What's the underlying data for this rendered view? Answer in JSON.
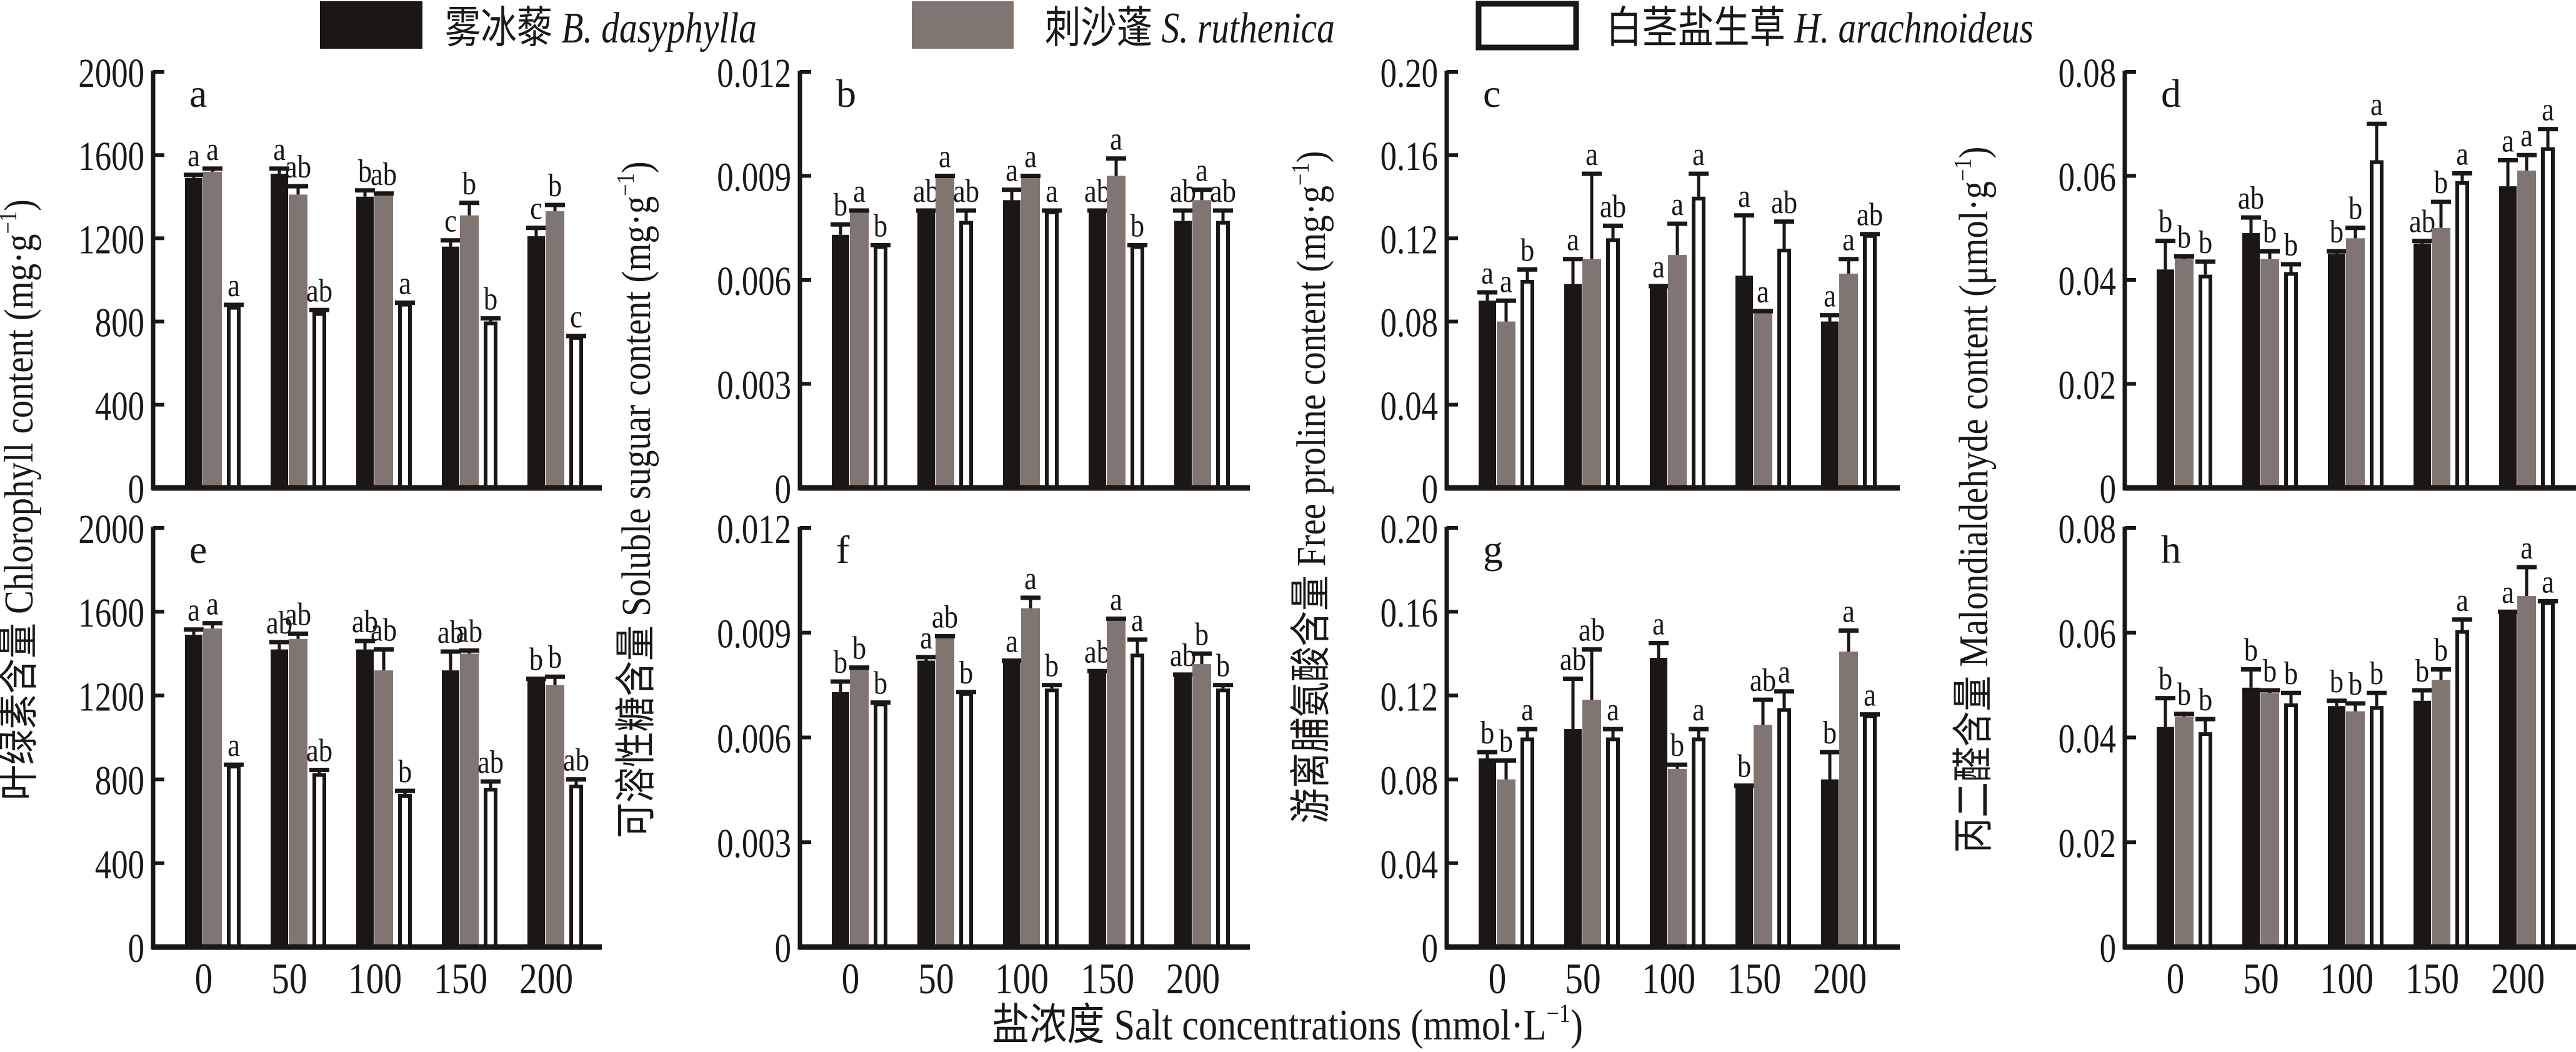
{
  "legend": [
    {
      "label": "雾冰藜 B. dasyphylla",
      "cn": "雾冰藜",
      "latin": "B. dasyphylla",
      "color": "#1a1714"
    },
    {
      "label": "刺沙蓬 S. ruthenica",
      "cn": "刺沙蓬",
      "latin": "S. ruthenica",
      "color": "#7f7672"
    },
    {
      "label": "白茎盐生草 H. arachnoideus",
      "cn": "白茎盐生草",
      "latin": "H. arachnoideus",
      "color": "#ffffff"
    }
  ],
  "x_title": "盐浓度 Salt concentrations (mmol·L⁻¹)",
  "x_title_parts": {
    "main": "盐浓度 Salt concentrations (mmol·L",
    "sup": "−1",
    "close": ")"
  },
  "y_titles": [
    {
      "main": "叶绿素含量 Chlorophyll content (mg·g",
      "sup": "−1",
      "close": ")"
    },
    {
      "main": "可溶性糖含量 Soluble suguar content (mg·g",
      "sup": "−1",
      "close": ")"
    },
    {
      "main": "游离脯氨酸含量 Free proline content (mg·g",
      "sup": "−1",
      "close": ")"
    },
    {
      "main": "丙二醛含量 Malondialdehyde content (μmol·g",
      "sup": "−1",
      "close": ")"
    }
  ],
  "chart_data": [
    {
      "type": "bar",
      "panel": "a",
      "row": 0,
      "col": 0,
      "categories": [
        "0",
        "50",
        "100",
        "150",
        "200"
      ],
      "ylim": [
        0,
        2000
      ],
      "yticks": [
        "0",
        "400",
        "800",
        "1200",
        "1600",
        "2000"
      ],
      "ylabel": "叶绿素含量 Chlorophyll content (mg·g⁻¹)",
      "xlabel": "",
      "series": [
        {
          "name": "雾冰藜 B. dasyphylla",
          "values": [
            1490,
            1510,
            1400,
            1160,
            1210
          ],
          "err": [
            1505,
            1535,
            1430,
            1190,
            1250
          ],
          "sig": [
            "a",
            "a",
            "b",
            "c",
            "c"
          ]
        },
        {
          "name": "刺沙蓬 S. ruthenica",
          "values": [
            1520,
            1410,
            1410,
            1310,
            1330
          ],
          "err": [
            1535,
            1450,
            1415,
            1370,
            1360
          ],
          "sig": [
            "a",
            "ab",
            "ab",
            "b",
            "b"
          ]
        },
        {
          "name": "白茎盐生草 H. arachnoideus",
          "values": [
            875,
            845,
            890,
            800,
            730
          ],
          "err": [
            880,
            855,
            890,
            815,
            730
          ],
          "sig": [
            "a",
            "ab",
            "a",
            "b",
            "c"
          ]
        }
      ]
    },
    {
      "type": "bar",
      "panel": "b",
      "row": 0,
      "col": 1,
      "categories": [
        "0",
        "50",
        "100",
        "150",
        "200"
      ],
      "ylim": [
        0,
        0.012
      ],
      "yticks": [
        "0",
        "0.003",
        "0.006",
        "0.009",
        "0.012"
      ],
      "ylabel": "可溶性糖含量 Soluble suguar content (mg·g⁻¹)",
      "xlabel": "",
      "series": [
        {
          "name": "雾冰藜 B. dasyphylla",
          "values": [
            0.0073,
            0.008,
            0.0083,
            0.008,
            0.0077
          ],
          "err": [
            0.0076,
            0.008,
            0.0086,
            0.008,
            0.008
          ],
          "sig": [
            "b",
            "ab",
            "a",
            "ab",
            "ab"
          ]
        },
        {
          "name": "刺沙蓬 S. ruthenica",
          "values": [
            0.008,
            0.009,
            0.009,
            0.009,
            0.0083
          ],
          "err": [
            0.008,
            0.009,
            0.009,
            0.0095,
            0.0086
          ],
          "sig": [
            "a",
            "a",
            "a",
            "a",
            "a"
          ]
        },
        {
          "name": "白茎盐生草 H. arachnoideus",
          "values": [
            0.007,
            0.0077,
            0.008,
            0.007,
            0.0077
          ],
          "err": [
            0.007,
            0.008,
            0.008,
            0.007,
            0.008
          ],
          "sig": [
            "b",
            "ab",
            "a",
            "b",
            "ab"
          ]
        }
      ]
    },
    {
      "type": "bar",
      "panel": "c",
      "row": 0,
      "col": 2,
      "categories": [
        "0",
        "50",
        "100",
        "150",
        "200"
      ],
      "ylim": [
        0,
        0.2
      ],
      "yticks": [
        "0",
        "0.04",
        "0.08",
        "0.12",
        "0.16",
        "0.20"
      ],
      "ylabel": "游离脯氨酸含量 Free proline content (mg·g⁻¹)",
      "xlabel": "",
      "series": [
        {
          "name": "雾冰藜 B. dasyphylla",
          "values": [
            0.09,
            0.098,
            0.097,
            0.102,
            0.08
          ],
          "err": [
            0.094,
            0.11,
            0.097,
            0.131,
            0.083
          ],
          "sig": [
            "a",
            "a",
            "a",
            "a",
            "a"
          ]
        },
        {
          "name": "刺沙蓬 S. ruthenica",
          "values": [
            0.08,
            0.11,
            0.112,
            0.085,
            0.103
          ],
          "err": [
            0.09,
            0.151,
            0.127,
            0.085,
            0.11
          ],
          "sig": [
            "a",
            "a",
            "a",
            "a",
            "a"
          ]
        },
        {
          "name": "白茎盐生草 H. arachnoideus",
          "values": [
            0.1,
            0.12,
            0.14,
            0.115,
            0.122
          ],
          "err": [
            0.105,
            0.126,
            0.151,
            0.128,
            0.122
          ],
          "sig": [
            "b",
            "ab",
            "a",
            "ab",
            "ab"
          ]
        }
      ]
    },
    {
      "type": "bar",
      "panel": "d",
      "row": 0,
      "col": 3,
      "categories": [
        "0",
        "50",
        "100",
        "150",
        "200"
      ],
      "ylim": [
        0,
        0.08
      ],
      "yticks": [
        "0",
        "0.02",
        "0.04",
        "0.06",
        "0.08"
      ],
      "ylabel": "丙二醛含量 Malondialdehyde content (μmol·g⁻¹)",
      "xlabel": "",
      "series": [
        {
          "name": "雾冰藜 B. dasyphylla",
          "values": [
            0.042,
            0.049,
            0.045,
            0.047,
            0.058
          ],
          "err": [
            0.0475,
            0.052,
            0.0455,
            0.0475,
            0.063
          ],
          "sig": [
            "b",
            "ab",
            "b",
            "ab",
            "a"
          ]
        },
        {
          "name": "刺沙蓬 S. ruthenica",
          "values": [
            0.044,
            0.044,
            0.048,
            0.05,
            0.061
          ],
          "err": [
            0.0445,
            0.0455,
            0.05,
            0.055,
            0.064
          ],
          "sig": [
            "b",
            "b",
            "b",
            "b",
            "a"
          ]
        },
        {
          "name": "白茎盐生草 H. arachnoideus",
          "values": [
            0.041,
            0.0415,
            0.063,
            0.059,
            0.0655
          ],
          "err": [
            0.0435,
            0.043,
            0.07,
            0.0605,
            0.069
          ],
          "sig": [
            "b",
            "b",
            "a",
            "a",
            "a"
          ]
        }
      ]
    },
    {
      "type": "bar",
      "panel": "e",
      "row": 1,
      "col": 0,
      "categories": [
        "0",
        "50",
        "100",
        "150",
        "200"
      ],
      "ylim": [
        0,
        2000
      ],
      "yticks": [
        "0",
        "400",
        "800",
        "1200",
        "1600",
        "2000"
      ],
      "ylabel": "叶绿素含量 Chlorophyll content (mg·g⁻¹)",
      "xlabel": "盐浓度 Salt concentrations (mmol·L⁻¹)",
      "series": [
        {
          "name": "雾冰藜 B. dasyphylla",
          "values": [
            1490,
            1420,
            1420,
            1320,
            1280
          ],
          "err": [
            1515,
            1455,
            1460,
            1410,
            1280
          ],
          "sig": [
            "a",
            "ab",
            "ab",
            "ab",
            "b"
          ]
        },
        {
          "name": "刺沙蓬 S. ruthenica",
          "values": [
            1520,
            1470,
            1320,
            1400,
            1250
          ],
          "err": [
            1545,
            1495,
            1420,
            1415,
            1290
          ],
          "sig": [
            "a",
            "ab",
            "ab",
            "ab",
            "b"
          ]
        },
        {
          "name": "白茎盐生草 H. arachnoideus",
          "values": [
            870,
            830,
            730,
            760,
            775
          ],
          "err": [
            870,
            845,
            745,
            790,
            800
          ],
          "sig": [
            "a",
            "ab",
            "b",
            "ab",
            "ab"
          ]
        }
      ]
    },
    {
      "type": "bar",
      "panel": "f",
      "row": 1,
      "col": 1,
      "categories": [
        "0",
        "50",
        "100",
        "150",
        "200"
      ],
      "ylim": [
        0,
        0.012
      ],
      "yticks": [
        "0",
        "0.003",
        "0.006",
        "0.009",
        "0.012"
      ],
      "ylabel": "可溶性糖含量 Soluble suguar content (mg·g⁻¹)",
      "xlabel": "盐浓度 Salt concentrations (mmol·L⁻¹)",
      "series": [
        {
          "name": "雾冰藜 B. dasyphylla",
          "values": [
            0.0073,
            0.0082,
            0.0082,
            0.0079,
            0.0078
          ],
          "err": [
            0.0076,
            0.0083,
            0.0082,
            0.0079,
            0.0078
          ],
          "sig": [
            "b",
            "a",
            "a",
            "ab",
            "ab"
          ]
        },
        {
          "name": "刺沙蓬 S. ruthenica",
          "values": [
            0.008,
            0.0089,
            0.0097,
            0.0094,
            0.0081
          ],
          "err": [
            0.008,
            0.0089,
            0.01,
            0.0094,
            0.0084
          ],
          "sig": [
            "b",
            "ab",
            "a",
            "a",
            "b"
          ]
        },
        {
          "name": "白茎盐生草 H. arachnoideus",
          "values": [
            0.007,
            0.0073,
            0.0074,
            0.0084,
            0.0074
          ],
          "err": [
            0.007,
            0.0073,
            0.0075,
            0.0088,
            0.0075
          ],
          "sig": [
            "b",
            "b",
            "b",
            "a",
            "b"
          ]
        }
      ]
    },
    {
      "type": "bar",
      "panel": "g",
      "row": 1,
      "col": 2,
      "categories": [
        "0",
        "50",
        "100",
        "150",
        "200"
      ],
      "ylim": [
        0,
        0.2
      ],
      "yticks": [
        "0",
        "0.04",
        "0.08",
        "0.12",
        "0.16",
        "0.20"
      ],
      "ylabel": "游离脯氨酸含量 Free proline content (mg·g⁻¹)",
      "xlabel": "盐浓度 Salt concentrations (mmol·L⁻¹)",
      "series": [
        {
          "name": "雾冰藜 B. dasyphylla",
          "values": [
            0.09,
            0.104,
            0.138,
            0.077,
            0.08
          ],
          "err": [
            0.093,
            0.128,
            0.145,
            0.077,
            0.093
          ],
          "sig": [
            "b",
            "ab",
            "a",
            "b",
            "b"
          ]
        },
        {
          "name": "刺沙蓬 S. ruthenica",
          "values": [
            0.08,
            0.118,
            0.085,
            0.106,
            0.141
          ],
          "err": [
            0.089,
            0.142,
            0.087,
            0.118,
            0.151
          ],
          "sig": [
            "b",
            "ab",
            "b",
            "ab",
            "a"
          ]
        },
        {
          "name": "白茎盐生草 H. arachnoideus",
          "values": [
            0.1,
            0.1,
            0.1,
            0.114,
            0.111
          ],
          "err": [
            0.104,
            0.104,
            0.104,
            0.122,
            0.111
          ],
          "sig": [
            "a",
            "a",
            "a",
            "a",
            "a"
          ]
        }
      ]
    },
    {
      "type": "bar",
      "panel": "h",
      "row": 1,
      "col": 3,
      "categories": [
        "0",
        "50",
        "100",
        "150",
        "200"
      ],
      "ylim": [
        0,
        0.08
      ],
      "yticks": [
        "0",
        "0.02",
        "0.04",
        "0.06",
        "0.08"
      ],
      "ylabel": "丙二醛含量 Malondialdehyde content (μmol·g⁻¹)",
      "xlabel": "盐浓度 Salt concentrations (mmol·L⁻¹)",
      "series": [
        {
          "name": "雾冰藜 B. dasyphylla",
          "values": [
            0.042,
            0.0495,
            0.046,
            0.047,
            0.064
          ],
          "err": [
            0.0475,
            0.053,
            0.047,
            0.049,
            0.064
          ],
          "sig": [
            "b",
            "b",
            "b",
            "b",
            "a"
          ]
        },
        {
          "name": "刺沙蓬 S. ruthenica",
          "values": [
            0.044,
            0.0485,
            0.045,
            0.051,
            0.067
          ],
          "err": [
            0.0445,
            0.049,
            0.0465,
            0.053,
            0.0725
          ],
          "sig": [
            "b",
            "b",
            "b",
            "b",
            "a"
          ]
        },
        {
          "name": "白茎盐生草 H. arachnoideus",
          "values": [
            0.041,
            0.0465,
            0.046,
            0.0605,
            0.066
          ],
          "err": [
            0.0435,
            0.0485,
            0.0485,
            0.0625,
            0.066
          ],
          "sig": [
            "b",
            "b",
            "b",
            "a",
            "a"
          ]
        }
      ]
    }
  ]
}
